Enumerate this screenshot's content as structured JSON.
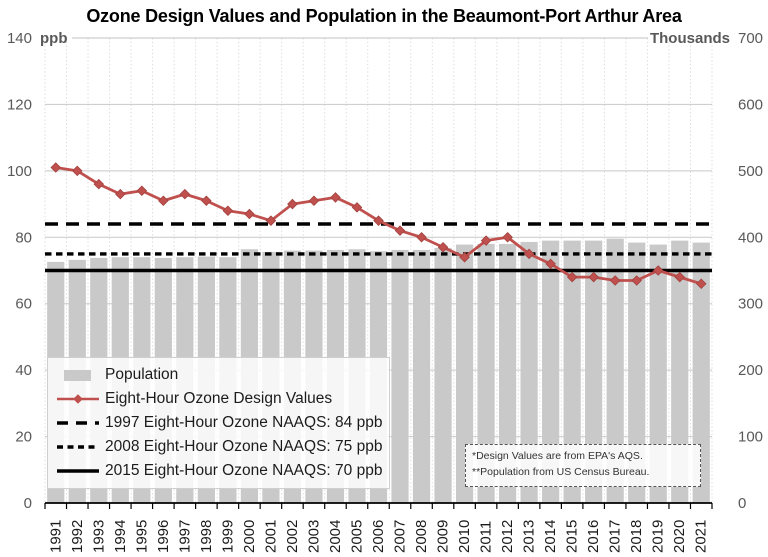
{
  "chart_data": {
    "type": "bar",
    "title": "Ozone Design Values and Population in the Beaumont-Port Arthur Area",
    "categories": [
      "1991",
      "1992",
      "1993",
      "1994",
      "1995",
      "1996",
      "1997",
      "1998",
      "1999",
      "2000",
      "2001",
      "2002",
      "2003",
      "2004",
      "2005",
      "2006",
      "2007",
      "2008",
      "2009",
      "2010",
      "2011",
      "2012",
      "2013",
      "2014",
      "2015",
      "2016",
      "2017",
      "2018",
      "2019",
      "2020",
      "2021"
    ],
    "series": [
      {
        "name": "Population",
        "type": "bar",
        "axis": "right",
        "unit": "thousands",
        "color": "#c9c9c9",
        "values": [
          363,
          366,
          369,
          370,
          370,
          369,
          370,
          371,
          370,
          382,
          378,
          380,
          380,
          381,
          382,
          379,
          381,
          381,
          384,
          389,
          390,
          390,
          393,
          395,
          395,
          395,
          398,
          392,
          389,
          395,
          392
        ]
      },
      {
        "name": "Eight-Hour Ozone Design Values",
        "type": "line",
        "axis": "left",
        "unit": "ppb",
        "color": "#c0504d",
        "values": [
          101,
          100,
          96,
          93,
          94,
          91,
          93,
          91,
          88,
          87,
          85,
          90,
          91,
          92,
          89,
          85,
          82,
          80,
          77,
          74,
          79,
          80,
          75,
          72,
          68,
          68,
          67,
          67,
          70,
          68,
          66
        ]
      }
    ],
    "reference_lines": [
      {
        "label": "1997 Eight-Hour Ozone NAAQS: 84 ppb",
        "value": 84,
        "style": "long-dash",
        "color": "#000000"
      },
      {
        "label": "2008 Eight-Hour Ozone NAAQS: 75 ppb",
        "value": 75,
        "style": "short-dash",
        "color": "#000000"
      },
      {
        "label": "2015 Eight-Hour Ozone NAAQS: 70 ppb",
        "value": 70,
        "style": "solid",
        "color": "#000000"
      }
    ],
    "left_axis": {
      "unit": "ppb",
      "min": 0,
      "max": 140,
      "ticks": [
        140,
        120,
        100,
        80,
        60,
        40,
        20,
        0
      ]
    },
    "right_axis": {
      "unit": "Thousands",
      "min": 0,
      "max": 700,
      "ticks": [
        700,
        600,
        500,
        400,
        300,
        200,
        100,
        0
      ]
    },
    "grid": true,
    "legend_position": "inside-bottom-left",
    "annotation": {
      "line1": "*Design Values are from EPA's AQS.",
      "line2": "**Population from US Census Bureau."
    }
  }
}
